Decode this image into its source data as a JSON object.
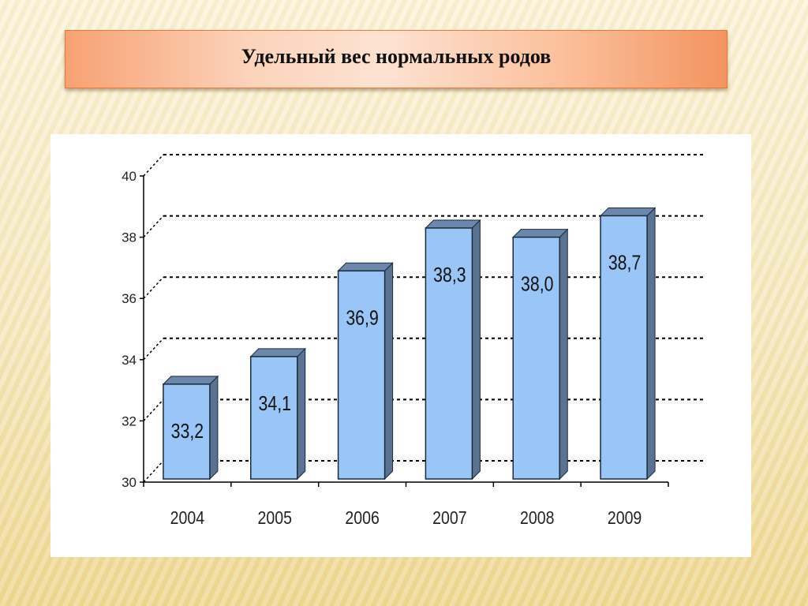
{
  "title": "Удельный вес нормальных родов",
  "colors": {
    "bar_front": "#99c5f7",
    "bar_side": "#5a7393",
    "bar_top": "#6b87ac",
    "bar_outline": "#1c2a3a"
  },
  "chart_data": {
    "type": "bar",
    "categories": [
      "2004",
      "2005",
      "2006",
      "2007",
      "2008",
      "2009"
    ],
    "values": [
      33.2,
      34.1,
      36.9,
      38.3,
      38.0,
      38.7
    ],
    "value_labels": [
      "33,2",
      "34,1",
      "36,9",
      "38,3",
      "38,0",
      "38,7"
    ],
    "ylim": [
      30,
      40
    ],
    "yticks": [
      30,
      32,
      34,
      36,
      38,
      40
    ],
    "title": "Удельный вес нормальных родов",
    "grid": "dashed",
    "style": "3d"
  }
}
